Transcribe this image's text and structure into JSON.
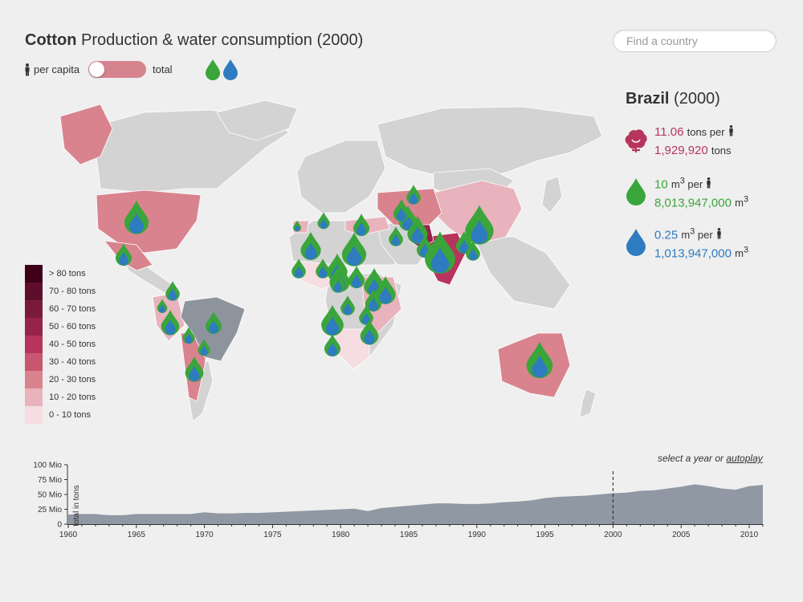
{
  "header": {
    "title_bold": "Cotton",
    "title_rest": " Production & water consumption (2000)",
    "search_placeholder": "Find a country"
  },
  "toggle": {
    "per_capita_label": "per capita",
    "total_label": "total",
    "selected": "per capita",
    "icons": [
      "person-icon",
      "green-drop-icon",
      "blue-drop-icon"
    ]
  },
  "legend": {
    "items": [
      {
        "label": "> 80 tons",
        "color": "#3d0018"
      },
      {
        "label": "70 - 80 tons",
        "color": "#5e0e2c"
      },
      {
        "label": "60 - 70 tons",
        "color": "#7a1a3b"
      },
      {
        "label": "50 - 60 tons",
        "color": "#96234a"
      },
      {
        "label": "40 - 50 tons",
        "color": "#b7345c"
      },
      {
        "label": "30 - 40 tons",
        "color": "#c9566f"
      },
      {
        "label": "20 - 30 tons",
        "color": "#d9838f"
      },
      {
        "label": "10 - 20 tons",
        "color": "#e8b3bc"
      },
      {
        "label": "0 - 10 tons",
        "color": "#f5dde1"
      }
    ]
  },
  "panel": {
    "country": "Brazil",
    "year": "(2000)",
    "cotton": {
      "per_capita": "11.06",
      "per_unit": "tons per",
      "total": "1,929,920",
      "total_unit": "tons",
      "color": "#b7345c"
    },
    "green_water": {
      "per_capita": "10",
      "per_unit": "m",
      "total": "8,013,947,000",
      "total_unit": "m",
      "color": "#3aa53a"
    },
    "blue_water": {
      "per_capita": "0.25",
      "per_unit": "m",
      "total": "1,013,947,000",
      "total_unit": "m",
      "color": "#2f7bbf"
    },
    "sup": "3",
    "per_word": "per"
  },
  "timeline": {
    "hint_text": "select a year or ",
    "autoplay_label": "autoplay",
    "ylabel": "total in tons",
    "selected_year": 2000
  },
  "chart_data": {
    "type": "area",
    "ylabel": "total in tons",
    "xlabel": "",
    "xlim": [
      1960,
      2011
    ],
    "ylim": [
      0,
      100
    ],
    "yticks": [
      "0",
      "25 Mio",
      "50 Mio",
      "75 Mio",
      "100 Mio"
    ],
    "xticks": [
      "1960",
      "1965",
      "1970",
      "1975",
      "1980",
      "1985",
      "1990",
      "1995",
      "2000",
      "2005",
      "2010"
    ],
    "x": [
      1960,
      1961,
      1962,
      1963,
      1964,
      1965,
      1966,
      1967,
      1968,
      1969,
      1970,
      1971,
      1972,
      1973,
      1974,
      1975,
      1976,
      1977,
      1978,
      1979,
      1980,
      1981,
      1982,
      1983,
      1984,
      1985,
      1986,
      1987,
      1988,
      1989,
      1990,
      1991,
      1992,
      1993,
      1994,
      1995,
      1996,
      1997,
      1998,
      1999,
      2000,
      2001,
      2002,
      2003,
      2004,
      2005,
      2006,
      2007,
      2008,
      2009,
      2010,
      2011
    ],
    "values": [
      16,
      17,
      17,
      15,
      15,
      17,
      17,
      17,
      17,
      17,
      20,
      18,
      18,
      19,
      19,
      20,
      21,
      22,
      23,
      24,
      25,
      26,
      22,
      27,
      29,
      31,
      33,
      35,
      35,
      34,
      34,
      35,
      37,
      38,
      40,
      44,
      46,
      47,
      48,
      50,
      52,
      53,
      56,
      57,
      60,
      63,
      67,
      64,
      60,
      58,
      64,
      66
    ],
    "selected_x": 2000
  }
}
